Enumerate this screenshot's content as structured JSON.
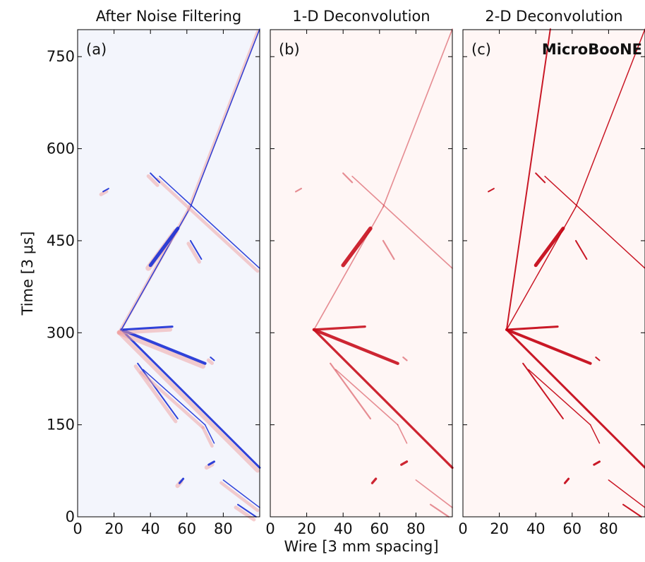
{
  "chart_data": [
    {
      "type": "image",
      "title": "After Noise Filtering",
      "annotation": "(a)",
      "ylabel": "Time [3 μs]",
      "color": "#1a2fd6",
      "background": "#f3f5fc",
      "xlim": [
        0,
        100
      ],
      "ylim": [
        0,
        794
      ],
      "xticks": [
        0,
        20,
        40,
        60,
        80
      ],
      "yticks": [
        0,
        150,
        300,
        450,
        600,
        750
      ]
    },
    {
      "type": "image",
      "title": "1-D Deconvolution",
      "annotation": "(b)",
      "xlabel": "Wire [3 mm spacing]",
      "color": "#c8101e",
      "background": "#fff6f5",
      "xlim": [
        0,
        100
      ],
      "ylim": [
        0,
        794
      ],
      "xticks": [
        0,
        20,
        40,
        60,
        80
      ]
    },
    {
      "type": "image",
      "title": "2-D Deconvolution",
      "annotation": "(c)",
      "label": "MicroBooNE",
      "color": "#c40010",
      "background": "#fff6f5",
      "xlim": [
        0,
        100
      ],
      "ylim": [
        0,
        794
      ],
      "xticks": [
        0,
        20,
        40,
        60,
        80
      ]
    }
  ]
}
